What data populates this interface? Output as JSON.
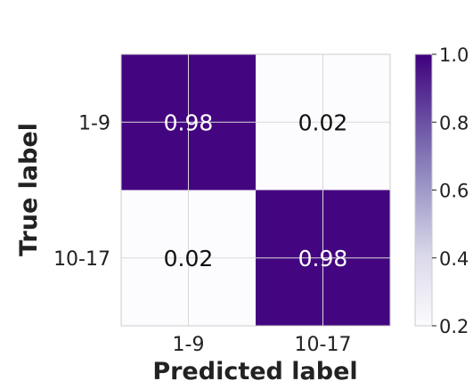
{
  "chart_data": {
    "type": "heatmap",
    "xlabel": "Predicted label",
    "ylabel": "True label",
    "x_categories": [
      "1-9",
      "10-17"
    ],
    "y_categories": [
      "1-9",
      "10-17"
    ],
    "matrix": [
      [
        0.98,
        0.02
      ],
      [
        0.02,
        0.98
      ]
    ],
    "cell_labels": [
      [
        "0.98",
        "0.02"
      ],
      [
        "0.02",
        "0.98"
      ]
    ],
    "colormap": "Purples",
    "color_low": "#fcfbfd",
    "color_high": "#3f007d",
    "colorbar": {
      "range": [
        0.2,
        1.0
      ],
      "ticks": [
        1.0,
        0.8,
        0.6,
        0.4,
        0.2
      ],
      "tick_labels": [
        "1.0",
        "0.8",
        "0.6",
        "0.4",
        "0.2"
      ]
    },
    "grid": true
  }
}
